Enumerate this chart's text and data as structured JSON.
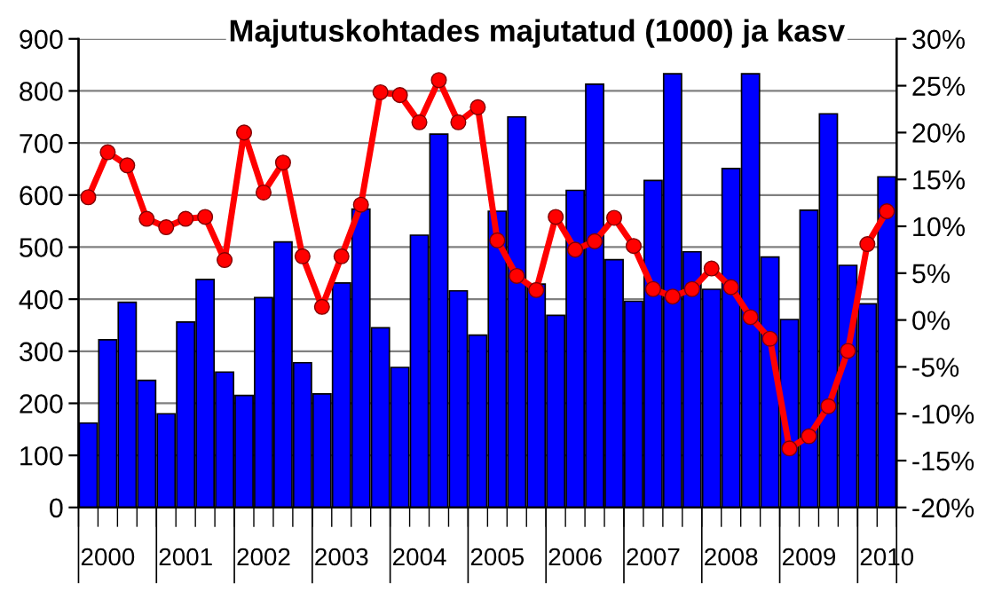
{
  "chart_data": {
    "type": "bar",
    "title": "Majutuskohtades majutatud (1000) ja kasv",
    "categories": [
      null,
      "2000",
      null,
      null,
      null,
      "2001",
      null,
      null,
      null,
      "2002",
      null,
      null,
      null,
      "2003",
      null,
      null,
      null,
      "2004",
      null,
      null,
      null,
      "2005",
      null,
      null,
      null,
      "2006",
      null,
      null,
      null,
      "2007",
      null,
      null,
      null,
      "2008",
      null,
      null,
      null,
      "2009",
      null,
      null,
      null,
      "2010"
    ],
    "series": [
      {
        "color": "#0000ff",
        "values": [
          162,
          322,
          394,
          244,
          180,
          356,
          438,
          260,
          215,
          403,
          510,
          278,
          218,
          431,
          573,
          345,
          269,
          523,
          717,
          416,
          331,
          569,
          750,
          429,
          369,
          609,
          813,
          476,
          396,
          628,
          833,
          491,
          419,
          651,
          833,
          481,
          361,
          571,
          756,
          465,
          391,
          635
        ]
      },
      {
        "type": "line",
        "axis": "y2",
        "color": "#ff0000",
        "marker": "circle",
        "values": [
          13.1,
          17.9,
          16.5,
          10.8,
          9.9,
          10.8,
          11.0,
          6.4,
          20.0,
          13.6,
          16.8,
          6.8,
          1.4,
          6.8,
          12.3,
          24.3,
          24.0,
          21.1,
          25.6,
          21.1,
          22.7,
          8.5,
          4.7,
          3.2,
          11.0,
          7.5,
          8.4,
          10.9,
          7.9,
          3.3,
          2.5,
          3.3,
          5.5,
          3.5,
          0.3,
          -2.0,
          -13.7,
          -12.4,
          -9.2,
          -3.3,
          8.1,
          11.6
        ]
      }
    ],
    "ylim": [
      0,
      900
    ],
    "yticks": [
      0,
      100,
      200,
      300,
      400,
      500,
      600,
      700,
      800,
      900
    ],
    "y2lim": [
      -20,
      30
    ],
    "y2ticks": [
      {
        "value": -20,
        "label": "-20%"
      },
      {
        "value": -15,
        "label": "-15%"
      },
      {
        "value": -10,
        "label": "-10%"
      },
      {
        "value": -5,
        "label": "-5%"
      },
      {
        "value": 0,
        "label": "0%"
      },
      {
        "value": 5,
        "label": "5%"
      },
      {
        "value": 10,
        "label": "10%"
      },
      {
        "value": 15,
        "label": "15%"
      },
      {
        "value": 20,
        "label": "20%"
      },
      {
        "value": 25,
        "label": "25%"
      },
      {
        "value": 30,
        "label": "30%"
      }
    ],
    "grid": "y",
    "legend": false
  }
}
